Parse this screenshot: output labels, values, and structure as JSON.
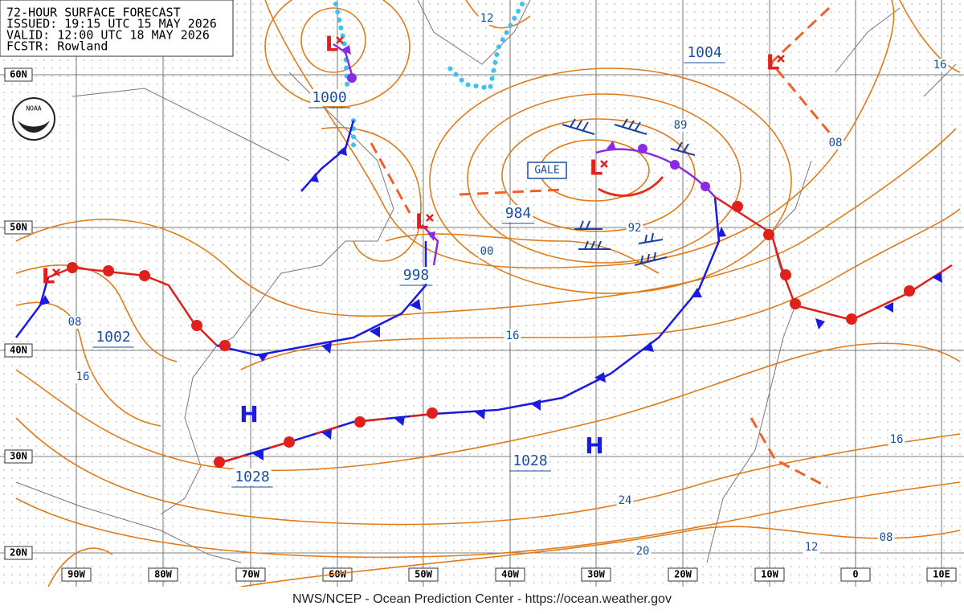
{
  "header": {
    "lines": [
      "72-HOUR SURFACE FORECAST",
      "ISSUED: 19:15 UTC 15 MAY 2026",
      "VALID: 12:00 UTC 18 MAY 2026",
      "FCSTR: Rowland"
    ]
  },
  "logo": "NOAA",
  "lat_labels": [
    "60N",
    "50N",
    "40N",
    "30N",
    "20N"
  ],
  "lon_labels": [
    "90W",
    "80W",
    "70W",
    "60W",
    "50W",
    "40W",
    "30W",
    "20W",
    "10W",
    "0",
    "10E"
  ],
  "pressure_labels": [
    "1004",
    "1000",
    "89",
    "984",
    "92",
    "00",
    "998",
    "1002",
    "08",
    "16",
    "16",
    "1028",
    "1028",
    "24",
    "20",
    "12",
    "16",
    "08",
    "12",
    "16",
    "08"
  ],
  "gale_label": "GALE",
  "highs": [
    "H",
    "H"
  ],
  "lows": [
    "L",
    "L",
    "L",
    "L",
    "L"
  ],
  "footer": "NWS/NCEP - Ocean Prediction Center - https://ocean.weather.gov"
}
